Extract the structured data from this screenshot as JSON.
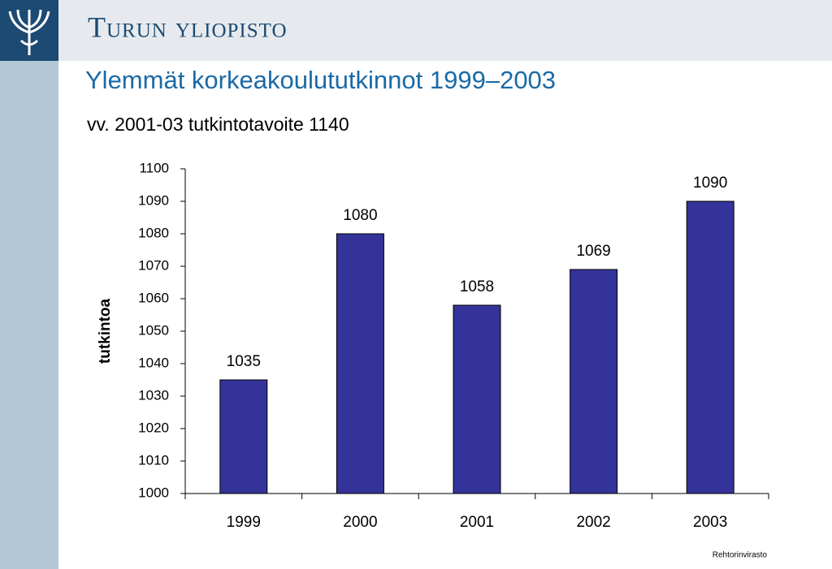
{
  "header": {
    "brand": "Turun yliopisto"
  },
  "footer": "Rehtorinvirasto",
  "chart_data": {
    "type": "bar",
    "title": "Ylemmät korkeakoulututkinnot 1999–2003",
    "subtitle": "vv. 2001-03 tutkintotavoite 1140",
    "y_label": "tutkintoa",
    "categories": [
      "1999",
      "2000",
      "2001",
      "2002",
      "2003"
    ],
    "values": [
      1035,
      1080,
      1058,
      1069,
      1090
    ],
    "color": "#333399",
    "ylim": [
      1000,
      1100
    ],
    "yticks": [
      1000,
      1010,
      1020,
      1030,
      1040,
      1050,
      1060,
      1070,
      1080,
      1090,
      1100
    ],
    "grid": false
  }
}
